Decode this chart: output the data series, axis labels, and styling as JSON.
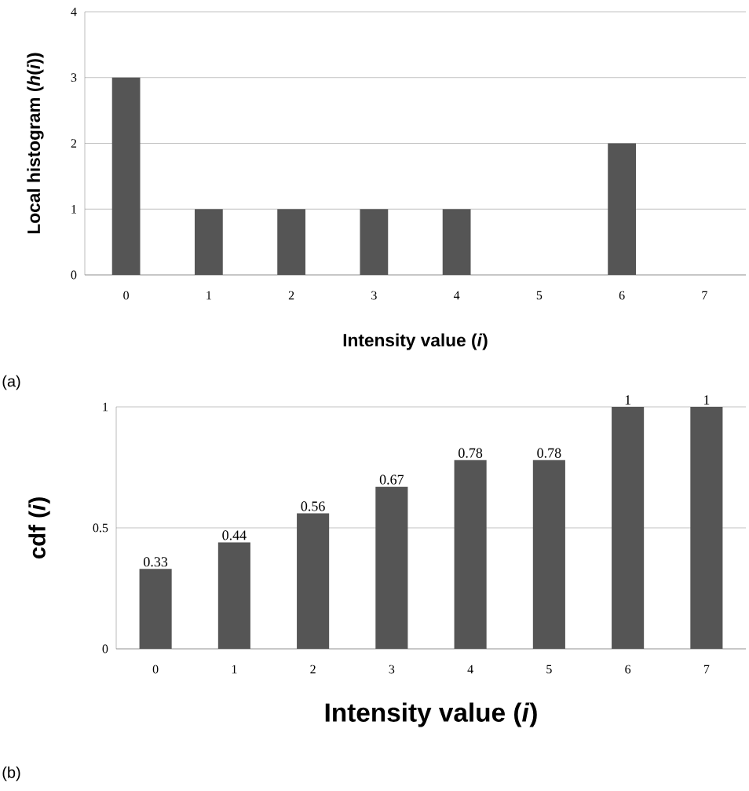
{
  "chart_data": [
    {
      "type": "bar",
      "categories": [
        "0",
        "1",
        "2",
        "3",
        "4",
        "5",
        "6",
        "7"
      ],
      "values": [
        3,
        1,
        1,
        1,
        1,
        0,
        2,
        0
      ],
      "color": "#555555",
      "ylim": [
        0,
        4
      ],
      "yticks": [
        0,
        1,
        2,
        3,
        4
      ],
      "grid": "y",
      "xlabel": "Intensity value (*i*)",
      "ylabel": "Local histogram (*h*(*i*))",
      "annotations": [
        "(a)"
      ]
    },
    {
      "type": "bar",
      "categories": [
        "0",
        "1",
        "2",
        "3",
        "4",
        "5",
        "6",
        "7"
      ],
      "values": [
        0.33,
        0.44,
        0.56,
        0.67,
        0.78,
        0.78,
        1,
        1
      ],
      "color": "#555555",
      "ylim": [
        0,
        1
      ],
      "yticks": [
        0,
        0.5,
        1
      ],
      "grid": "y",
      "data_labels": true,
      "xlabel": "Intensity value (*i*)",
      "ylabel": "cdf (*i*)",
      "annotations": [
        "(b)"
      ]
    }
  ]
}
